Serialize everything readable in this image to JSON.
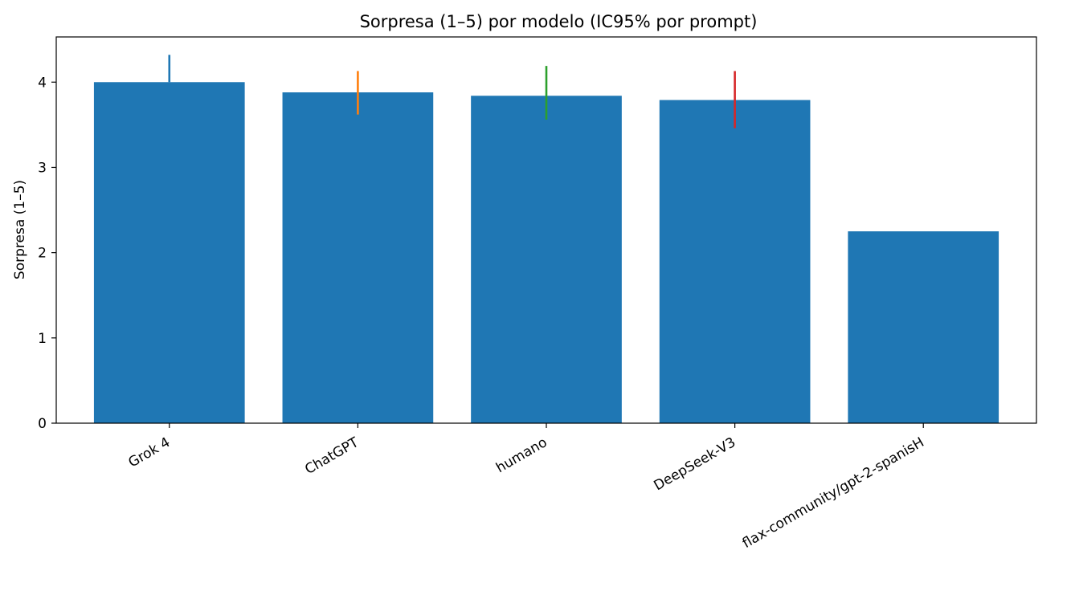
{
  "chart_data": {
    "type": "bar",
    "title": "Sorpresa (1–5) por modelo (IC95% por prompt)",
    "xlabel": "",
    "ylabel": "Sorpresa (1–5)",
    "categories": [
      "Grok 4",
      "ChatGPT",
      "humano",
      "DeepSeek-V3",
      "flax-community/gpt-2-spanisH"
    ],
    "values": [
      4.0,
      3.88,
      3.84,
      3.79,
      2.25
    ],
    "ci_low": [
      4.0,
      3.62,
      3.56,
      3.46,
      null
    ],
    "ci_high": [
      4.32,
      4.13,
      4.19,
      4.13,
      null
    ],
    "bar_color": "#1f77b4",
    "errorbar_colors": [
      "#1f77b4",
      "#ff7f0e",
      "#2ca02c",
      "#d62728",
      "#9467bd"
    ],
    "ylim": [
      0,
      4.53
    ],
    "yticks": [
      0,
      1,
      2,
      3,
      4
    ],
    "grid": false,
    "legend": "none"
  }
}
